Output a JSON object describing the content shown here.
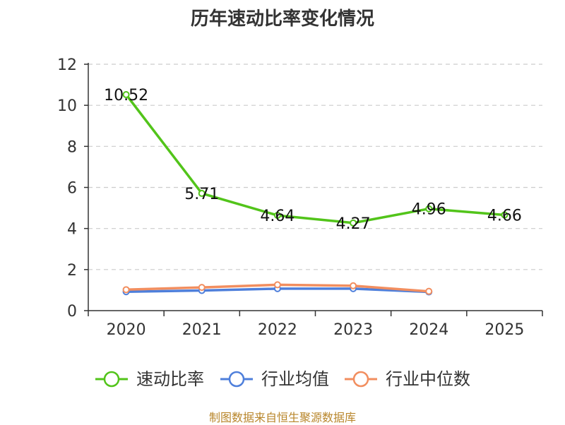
{
  "title": "历年速动比率变化情况",
  "source": "制图数据来自恒生聚源数据库",
  "chart_data": {
    "type": "line",
    "title": "历年速动比率变化情况",
    "categories": [
      "2020",
      "2021",
      "2022",
      "2023",
      "2024",
      "2025"
    ],
    "ylim": [
      0,
      12
    ],
    "yticks": [
      "0",
      "2",
      "4",
      "6",
      "8",
      "10",
      "12"
    ],
    "grid": true,
    "legend_position": "bottom",
    "series": [
      {
        "name": "速动比率",
        "color": "#52c41a",
        "values": [
          10.52,
          5.71,
          4.64,
          4.27,
          4.96,
          4.66
        ],
        "labels": [
          "10.52",
          "5.71",
          "4.64",
          "4.27",
          "4.96",
          "4.66"
        ]
      },
      {
        "name": "行业均值",
        "color": "#4e7fdb",
        "values": [
          0.92,
          0.98,
          1.07,
          1.07,
          0.91,
          null
        ]
      },
      {
        "name": "行业中位数",
        "color": "#f28e5f",
        "values": [
          1.02,
          1.13,
          1.26,
          1.21,
          0.94,
          null
        ]
      }
    ]
  }
}
